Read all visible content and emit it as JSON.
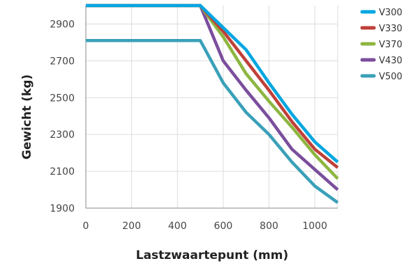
{
  "chart_data": {
    "type": "line",
    "title": "",
    "xlabel": "Lastzwaartepunt (mm)",
    "ylabel": "Gewicht (kg)",
    "xlim": [
      0,
      1100
    ],
    "ylim": [
      1900,
      3000
    ],
    "xticks": [
      "0",
      "200",
      "400",
      "600",
      "800",
      "1000"
    ],
    "yticks": [
      "1900",
      "2100",
      "2300",
      "2500",
      "2700",
      "2900"
    ],
    "grid": true,
    "legend_position": "right",
    "series": [
      {
        "name": "V300",
        "color": "#00a6e0",
        "x": [
          0,
          500,
          600,
          700,
          800,
          900,
          1000,
          1100
        ],
        "y": [
          3000,
          3000,
          2880,
          2760,
          2580,
          2410,
          2260,
          2150
        ]
      },
      {
        "name": "V330",
        "color": "#c0403a",
        "x": [
          0,
          500,
          600,
          700,
          800,
          900,
          1000,
          1100
        ],
        "y": [
          3000,
          3000,
          2860,
          2700,
          2540,
          2370,
          2220,
          2120
        ]
      },
      {
        "name": "V370",
        "color": "#8db641",
        "x": [
          0,
          500,
          600,
          700,
          800,
          900,
          1000,
          1100
        ],
        "y": [
          3000,
          3000,
          2830,
          2630,
          2480,
          2340,
          2190,
          2060
        ]
      },
      {
        "name": "V430",
        "color": "#7b4e9d",
        "x": [
          0,
          500,
          600,
          700,
          800,
          900,
          1000,
          1100
        ],
        "y": [
          3000,
          3000,
          2700,
          2540,
          2390,
          2220,
          2110,
          2000
        ]
      },
      {
        "name": "V500",
        "color": "#3aa0b8",
        "x": [
          0,
          500,
          600,
          700,
          800,
          900,
          1000,
          1100
        ],
        "y": [
          2810,
          2810,
          2580,
          2420,
          2300,
          2150,
          2020,
          1930
        ]
      }
    ]
  }
}
